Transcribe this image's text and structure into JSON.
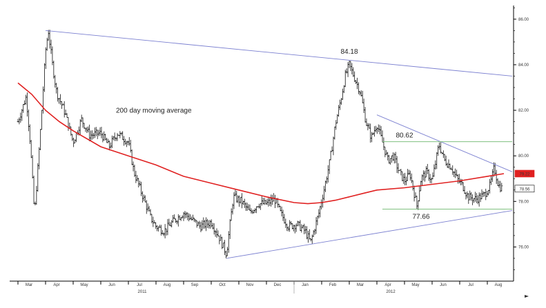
{
  "chart_data": {
    "type": "line",
    "chart_style": "daily OHLC price bars with moving average and trend lines",
    "grid": false,
    "y_axis_side": "right",
    "ylim": [
      74.5,
      86.6
    ],
    "yticks": [
      76.0,
      78.0,
      80.0,
      82.0,
      84.0,
      86.0
    ],
    "ytick_labels": [
      "76.00",
      "78.00",
      "80.00",
      "82.00",
      "84.00",
      "86.00"
    ],
    "x_months": [
      {
        "label": "Mar",
        "t": 0.0
      },
      {
        "label": "Apr",
        "t": 1.0
      },
      {
        "label": "May",
        "t": 2.0
      },
      {
        "label": "Jun",
        "t": 3.0
      },
      {
        "label": "Jul",
        "t": 4.0
      },
      {
        "label": "Aug",
        "t": 5.0
      },
      {
        "label": "Sep",
        "t": 6.0
      },
      {
        "label": "Oct",
        "t": 7.0
      },
      {
        "label": "Nov",
        "t": 8.0
      },
      {
        "label": "Dec",
        "t": 9.0
      },
      {
        "label": "Jan",
        "t": 10.0
      },
      {
        "label": "Feb",
        "t": 11.0
      },
      {
        "label": "Mar",
        "t": 12.0
      },
      {
        "label": "Apr",
        "t": 13.0
      },
      {
        "label": "May",
        "t": 14.0
      },
      {
        "label": "Jun",
        "t": 15.0
      },
      {
        "label": "Jul",
        "t": 16.0
      },
      {
        "label": "Aug",
        "t": 17.0
      }
    ],
    "year_labels": [
      {
        "label": "2011",
        "t": 4.5
      },
      {
        "label": "2012",
        "t": 13.5
      }
    ],
    "price_path": [
      [
        0.0,
        81.5
      ],
      [
        0.3,
        82.6
      ],
      [
        0.45,
        80.5
      ],
      [
        0.6,
        77.4
      ],
      [
        0.8,
        80.8
      ],
      [
        1.0,
        84.6
      ],
      [
        1.1,
        85.5
      ],
      [
        1.25,
        84.0
      ],
      [
        1.4,
        82.8
      ],
      [
        1.7,
        81.9
      ],
      [
        2.0,
        80.6
      ],
      [
        2.3,
        81.6
      ],
      [
        2.6,
        80.9
      ],
      [
        3.0,
        81.0
      ],
      [
        3.3,
        80.4
      ],
      [
        3.6,
        81.0
      ],
      [
        4.0,
        80.6
      ],
      [
        4.2,
        79.3
      ],
      [
        4.5,
        78.3
      ],
      [
        4.8,
        77.3
      ],
      [
        5.0,
        76.9
      ],
      [
        5.3,
        76.7
      ],
      [
        5.6,
        77.1
      ],
      [
        6.0,
        77.5
      ],
      [
        6.3,
        77.2
      ],
      [
        6.6,
        76.9
      ],
      [
        7.0,
        77.1
      ],
      [
        7.3,
        76.4
      ],
      [
        7.55,
        75.7
      ],
      [
        7.8,
        78.2
      ],
      [
        8.1,
        78.0
      ],
      [
        8.4,
        77.5
      ],
      [
        8.7,
        77.9
      ],
      [
        9.0,
        77.9
      ],
      [
        9.3,
        78.1
      ],
      [
        9.5,
        77.5
      ],
      [
        9.8,
        76.9
      ],
      [
        10.1,
        77.0
      ],
      [
        10.4,
        76.7
      ],
      [
        10.6,
        76.2
      ],
      [
        10.9,
        77.5
      ],
      [
        11.1,
        78.6
      ],
      [
        11.3,
        79.8
      ],
      [
        11.5,
        81.4
      ],
      [
        11.7,
        82.5
      ],
      [
        11.85,
        83.5
      ],
      [
        12.0,
        84.0
      ],
      [
        12.2,
        83.4
      ],
      [
        12.4,
        82.8
      ],
      [
        12.6,
        81.5
      ],
      [
        12.8,
        80.8
      ],
      [
        13.0,
        81.4
      ],
      [
        13.2,
        80.6
      ],
      [
        13.4,
        79.8
      ],
      [
        13.6,
        80.0
      ],
      [
        13.8,
        79.3
      ],
      [
        14.0,
        78.9
      ],
      [
        14.2,
        79.2
      ],
      [
        14.45,
        77.8
      ],
      [
        14.6,
        79.0
      ],
      [
        14.8,
        79.3
      ],
      [
        15.0,
        78.9
      ],
      [
        15.25,
        80.5
      ],
      [
        15.45,
        79.8
      ],
      [
        15.7,
        79.5
      ],
      [
        15.9,
        79.0
      ],
      [
        16.1,
        78.7
      ],
      [
        16.3,
        78.2
      ],
      [
        16.6,
        78.1
      ],
      [
        16.9,
        78.3
      ],
      [
        17.1,
        78.7
      ],
      [
        17.25,
        79.5
      ],
      [
        17.4,
        78.7
      ],
      [
        17.55,
        78.56
      ]
    ],
    "series": [
      {
        "name": "200 day moving average",
        "color": "#e02020",
        "points": [
          [
            0.0,
            83.2
          ],
          [
            0.5,
            82.7
          ],
          [
            1.0,
            82.0
          ],
          [
            1.5,
            81.5
          ],
          [
            2.0,
            81.1
          ],
          [
            3.0,
            80.4
          ],
          [
            4.0,
            80.0
          ],
          [
            5.0,
            79.6
          ],
          [
            6.0,
            79.1
          ],
          [
            7.0,
            78.8
          ],
          [
            8.0,
            78.5
          ],
          [
            9.0,
            78.2
          ],
          [
            10.0,
            77.95
          ],
          [
            10.5,
            77.9
          ],
          [
            11.0,
            77.95
          ],
          [
            11.5,
            78.05
          ],
          [
            12.0,
            78.2
          ],
          [
            12.5,
            78.35
          ],
          [
            13.0,
            78.5
          ],
          [
            14.0,
            78.6
          ],
          [
            15.0,
            78.75
          ],
          [
            16.0,
            78.9
          ],
          [
            17.0,
            79.1
          ],
          [
            17.6,
            79.22
          ]
        ]
      }
    ],
    "trend_lines": [
      {
        "color": "#7a7fd0",
        "from": [
          1.0,
          85.5
        ],
        "to": [
          17.9,
          83.5
        ]
      },
      {
        "color": "#7a7fd0",
        "from": [
          7.55,
          75.5
        ],
        "to": [
          17.9,
          77.6
        ]
      },
      {
        "color": "#7a7fd0",
        "from": [
          13.0,
          81.8
        ],
        "to": [
          17.9,
          79.3
        ]
      }
    ],
    "horizontal_levels": [
      {
        "value": 80.62,
        "color": "#7fc07f",
        "from_t": 13.2,
        "to_t": 17.9
      },
      {
        "value": 77.66,
        "color": "#7fc07f",
        "from_t": 13.2,
        "to_t": 17.9
      }
    ],
    "annotations": [
      {
        "text": "84.18",
        "t": 12.0,
        "value": 84.18,
        "kind": "peak"
      },
      {
        "text": "80.62",
        "t": 14.0,
        "value": 80.62,
        "kind": "level"
      },
      {
        "text": "77.66",
        "t": 14.6,
        "value": 77.66,
        "kind": "level"
      },
      {
        "text": "200 day moving average",
        "t": 5.8,
        "value": 81.9,
        "kind": "series-label",
        "color": "#e02020"
      }
    ],
    "price_tags": [
      {
        "text": "79.22",
        "value": 79.22,
        "background": "#e02020",
        "color": "#ffffff"
      },
      {
        "text": "78.56",
        "value": 78.56,
        "background": "#ffffff",
        "color": "#000000"
      }
    ]
  }
}
